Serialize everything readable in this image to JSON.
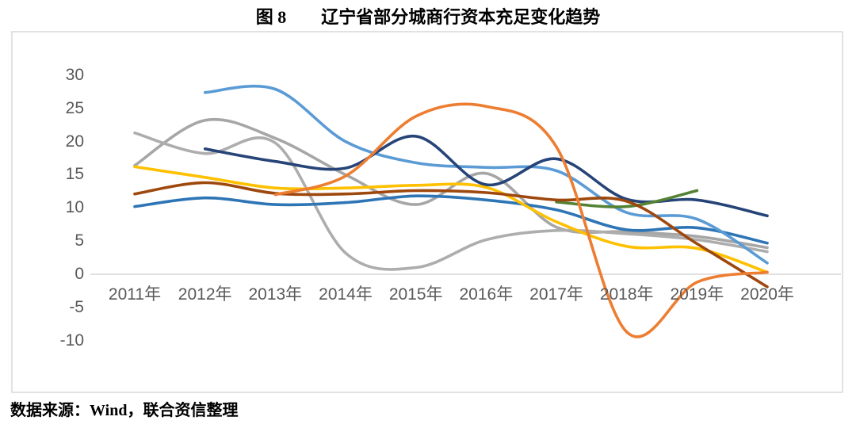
{
  "title": "图 8　　辽宁省部分城商行资本充足变化趋势",
  "source_note": "数据来源：Wind，联合资信整理",
  "chart_data": {
    "type": "line",
    "title": "图 8　　辽宁省部分城商行资本充足变化趋势",
    "categories": [
      "2011年",
      "2012年",
      "2013年",
      "2014年",
      "2015年",
      "2016年",
      "2017年",
      "2018年",
      "2019年",
      "2020年"
    ],
    "y_ticks": [
      30,
      25,
      20,
      15,
      10,
      5,
      0,
      -5,
      -10
    ],
    "ylim": [
      -10,
      30
    ],
    "xlabel": "",
    "ylabel": "",
    "legend": "none",
    "grid": "zero-axis-line-only",
    "line_style": "smooth",
    "frame_color": "#D9D9D9",
    "tick_label_color": "#595959",
    "series": [
      {
        "name": "gray-1",
        "color": "#A6A6A6",
        "values": [
          16.4,
          23.2,
          20.5,
          15.0,
          10.5,
          15.2,
          7.1,
          6.4,
          5.7,
          4.0
        ]
      },
      {
        "name": "gray-2",
        "color": "#ADADAD",
        "values": [
          21.3,
          18.2,
          19.8,
          3.2,
          1.0,
          5.2,
          6.6,
          6.1,
          5.2,
          3.4
        ]
      },
      {
        "name": "medium-blue",
        "color": "#2E75B6",
        "values": [
          10.2,
          11.5,
          10.5,
          10.8,
          11.8,
          11.2,
          9.7,
          6.7,
          7.0,
          4.7
        ]
      },
      {
        "name": "gold",
        "color": "#FFC000",
        "values": [
          16.2,
          14.6,
          13.0,
          13.0,
          13.4,
          13.1,
          7.9,
          4.2,
          3.9,
          0.3
        ]
      },
      {
        "name": "light-blue",
        "color": "#5B9BD5",
        "values": [
          null,
          27.4,
          27.9,
          20.0,
          16.8,
          16.1,
          15.6,
          9.3,
          8.3,
          1.7
        ]
      },
      {
        "name": "dark-blue",
        "color": "#264478",
        "values": [
          null,
          18.9,
          17.0,
          16.0,
          20.8,
          13.5,
          17.4,
          11.3,
          11.2,
          8.8
        ]
      },
      {
        "name": "green",
        "color": "#548235",
        "values": [
          null,
          null,
          null,
          null,
          null,
          null,
          10.9,
          10.2,
          12.6,
          null
        ]
      },
      {
        "name": "dark-red",
        "color": "#9E480E",
        "values": [
          12.1,
          13.8,
          12.2,
          12.1,
          12.6,
          12.3,
          11.2,
          11.0,
          4.6,
          -1.9
        ]
      },
      {
        "name": "orange",
        "color": "#ED7D31",
        "values": [
          null,
          null,
          12.0,
          14.8,
          23.8,
          25.3,
          19.2,
          -8.7,
          -1.2,
          0.3
        ]
      }
    ]
  }
}
